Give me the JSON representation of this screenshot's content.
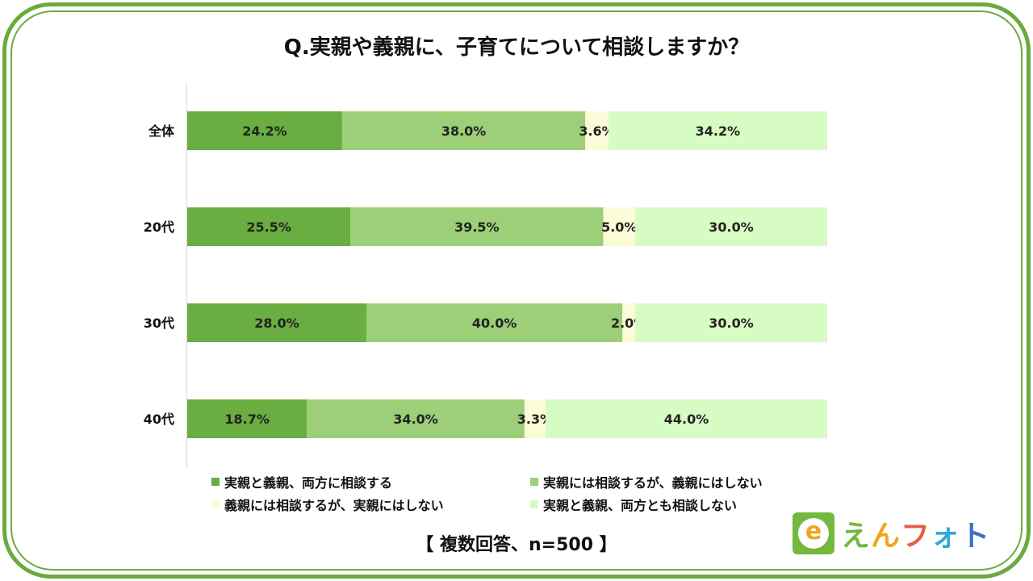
{
  "title": "Q.実親や義親に、子育てについて相談しますか？",
  "footnote": "【 複数回答、n=500 】",
  "logo": {
    "mark": "e",
    "chars": [
      "え",
      "ん",
      "フ",
      "ォ",
      "ト"
    ],
    "colors": [
      "#74b83e",
      "#f2a51a",
      "#e95c48",
      "#35a7d6",
      "#3d6fc8"
    ]
  },
  "chart_data": {
    "type": "bar",
    "orientation": "horizontal",
    "stacked": "percent",
    "categories": [
      "全体",
      "20代",
      "30代",
      "40代"
    ],
    "series": [
      {
        "name": "実親と義親、両方に相談する",
        "color": "#6aad40",
        "values": [
          24.2,
          25.5,
          28.0,
          18.7
        ]
      },
      {
        "name": "実親には相談するが、義親にはしない",
        "color": "#9ccf78",
        "values": [
          38.0,
          39.5,
          40.0,
          34.0
        ]
      },
      {
        "name": "義親には相談するが、実親にはしない",
        "color": "#fbfbd8",
        "values": [
          3.6,
          5.0,
          2.0,
          3.3
        ]
      },
      {
        "name": "実親と義親、両方とも相談しない",
        "color": "#d6fcc4",
        "values": [
          34.2,
          30.0,
          30.0,
          44.0
        ]
      }
    ],
    "value_labels": [
      [
        "24.2%",
        "38.0%",
        "3.6%",
        "34.2%"
      ],
      [
        "25.5%",
        "39.5%",
        "5.0%",
        "30.0%"
      ],
      [
        "28.0%",
        "40.0%",
        "2.0%",
        "30.0%"
      ],
      [
        "18.7%",
        "34.0%",
        "3.3%",
        "44.0%"
      ]
    ],
    "legend_position": "bottom",
    "grid": false
  }
}
